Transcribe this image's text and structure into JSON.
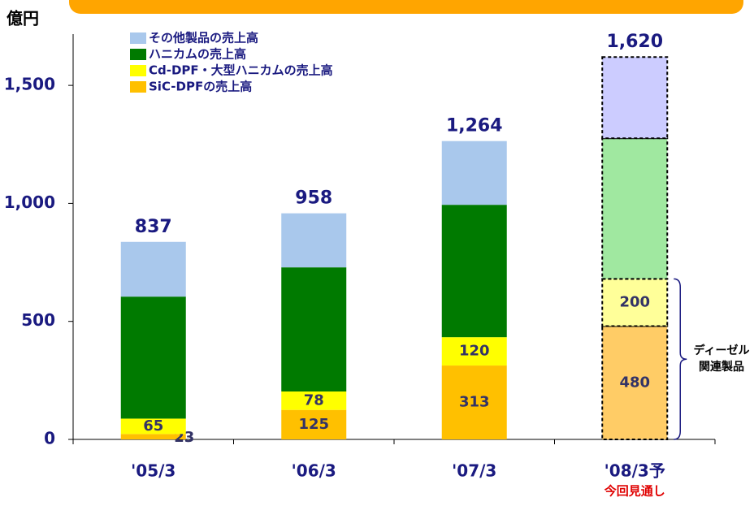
{
  "chart_data": {
    "type": "stacked_bar",
    "y_axis_label": "億円",
    "categories": [
      "'05/3",
      "'06/3",
      "'07/3",
      "'08/3予"
    ],
    "category_notes": [
      null,
      null,
      null,
      "今回見通し"
    ],
    "series": [
      {
        "name": "SiC-DPFの売上高",
        "color": "#ffc000",
        "forecast_color": "#ffcc66",
        "values": [
          23,
          125,
          313,
          480
        ],
        "value_labels": [
          "23",
          "125",
          "313",
          "480"
        ]
      },
      {
        "name": "Cd-DPF・大型ハニカムの売上高",
        "color": "#ffff00",
        "forecast_color": "#ffff99",
        "values": [
          65,
          78,
          120,
          200
        ],
        "value_labels": [
          "65",
          "78",
          "120",
          "200"
        ]
      },
      {
        "name": "ハニカムの売上高",
        "color": "#007a00",
        "forecast_color": "#a0e8a0",
        "values": [
          517,
          526,
          561,
          596
        ]
      },
      {
        "name": "その他製品の売上高",
        "color": "#a9c8ec",
        "forecast_color": "#ccccff",
        "values": [
          232,
          229,
          270,
          344
        ]
      }
    ],
    "totals": [
      837,
      958,
      1264,
      1620
    ],
    "total_labels": [
      "837",
      "958",
      "1,264",
      "1,620"
    ],
    "forecast_category": 3,
    "annotation": "ディーゼル関連製品",
    "ylim": [
      0,
      1700
    ],
    "yticks": [
      0,
      500,
      {
        "value": 1000,
        "label": "1,000"
      },
      {
        "value": 1500,
        "label": "1,500"
      }
    ]
  }
}
